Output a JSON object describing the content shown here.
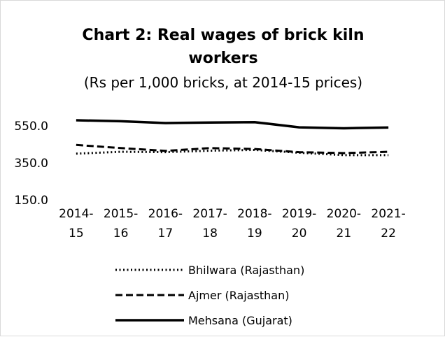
{
  "chart_data": {
    "type": "line",
    "title_line1": "Chart 2: Real wages of brick kiln",
    "title_line2": "workers",
    "subtitle": "(Rs per 1,000 bricks, at 2014-15 prices)",
    "categories": [
      {
        "line1": "2014-",
        "line2": "15"
      },
      {
        "line1": "2015-",
        "line2": "16"
      },
      {
        "line1": "2016-",
        "line2": "17"
      },
      {
        "line1": "2017-",
        "line2": "18"
      },
      {
        "line1": "2018-",
        "line2": "19"
      },
      {
        "line1": "2019-",
        "line2": "20"
      },
      {
        "line1": "2020-",
        "line2": "21"
      },
      {
        "line1": "2021-",
        "line2": "22"
      }
    ],
    "ylim": [
      150,
      550
    ],
    "yticks": [
      "150.0",
      "350.0",
      "550.0"
    ],
    "grid": false,
    "legend_position": "bottom",
    "series": [
      {
        "name": "Bhilwara (Rajasthan)",
        "style": "dotted",
        "color": "#000000",
        "values": [
          400,
          410,
          408,
          416,
          420,
          405,
          392,
          392
        ]
      },
      {
        "name": "Ajmer (Rajasthan)",
        "style": "dashed",
        "color": "#000000",
        "values": [
          447,
          430,
          415,
          430,
          425,
          408,
          403,
          410
        ]
      },
      {
        "name": "Mehsana (Gujarat)",
        "style": "solid",
        "color": "#000000",
        "values": [
          580,
          575,
          565,
          568,
          570,
          542,
          537,
          541
        ]
      }
    ]
  }
}
